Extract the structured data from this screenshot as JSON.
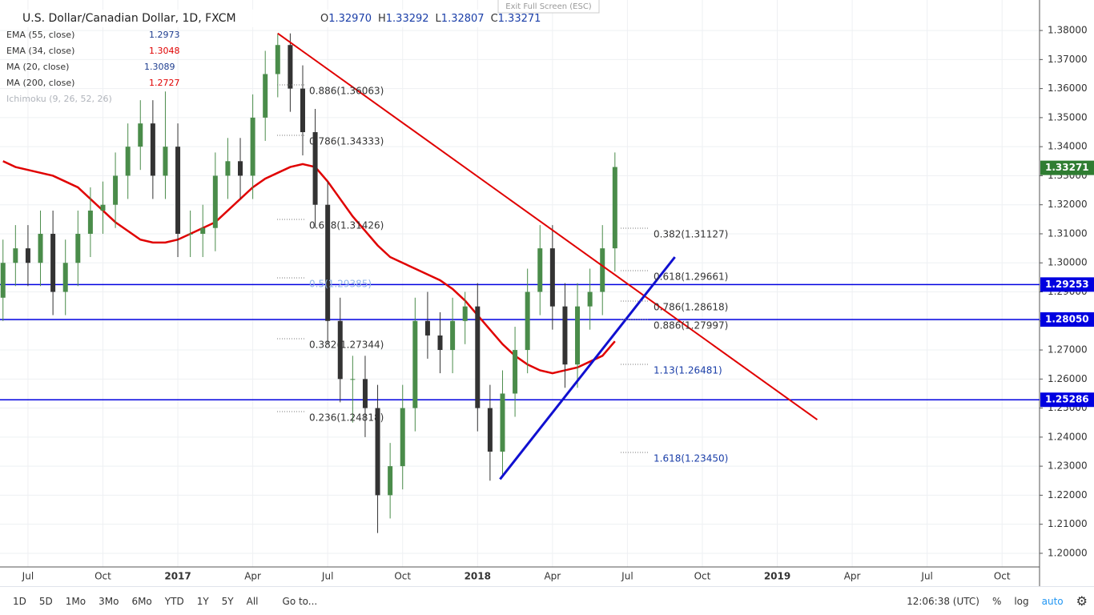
{
  "chart_data": {
    "type": "candlestick",
    "title": "U.S. Dollar/Canadian Dollar, 1D, FXCM",
    "ohlc": [
      {
        "label": "O",
        "value": "1.32970"
      },
      {
        "label": "H",
        "value": "1.33292"
      },
      {
        "label": "L",
        "value": "1.32807"
      },
      {
        "label": "C",
        "value": "1.33271"
      }
    ],
    "exit_button": "Exit Full Screen (ESC)",
    "indicators": [
      {
        "name": "EMA (55, close)",
        "value": "1.2973",
        "color": "#1e3d8f"
      },
      {
        "name": "EMA (34, close)",
        "value": "1.3048",
        "color": "#e00000"
      },
      {
        "name": "MA (20, close)",
        "value": "1.3089",
        "color": "#1e3d8f"
      },
      {
        "name": "MA (200, close)",
        "value": "1.2727",
        "color": "#e00000",
        "values": [
          1.335,
          1.333,
          1.332,
          1.331,
          1.33,
          1.328,
          1.326,
          1.322,
          1.318,
          1.314,
          1.311,
          1.308,
          1.307,
          1.307,
          1.308,
          1.31,
          1.312,
          1.314,
          1.318,
          1.322,
          1.326,
          1.329,
          1.331,
          1.333,
          1.334,
          1.333,
          1.328,
          1.322,
          1.316,
          1.311,
          1.306,
          1.302,
          1.3,
          1.298,
          1.296,
          1.294,
          1.291,
          1.287,
          1.282,
          1.277,
          1.272,
          1.268,
          1.265,
          1.263,
          1.262,
          1.263,
          1.264,
          1.266,
          1.268,
          1.273
        ]
      },
      {
        "name": "Ichimoku (9, 26, 52, 26)",
        "color": "#b0b4bb"
      }
    ],
    "x": [
      -1,
      -0.5,
      0,
      0.5,
      1,
      1.5,
      2,
      2.5,
      3,
      3.5,
      4,
      4.5,
      5,
      5.5,
      6,
      6.5,
      7,
      7.5,
      8,
      8.5,
      9,
      9.5,
      10,
      10.5,
      11,
      11.5,
      12,
      12.5,
      13,
      13.5,
      14,
      14.5,
      15,
      15.5,
      16,
      16.5,
      17,
      17.5,
      18,
      18.5,
      19,
      19.5,
      20,
      20.5,
      21,
      21.5,
      22,
      22.5,
      23,
      23.5
    ],
    "candles": {
      "open": [
        1.288,
        1.3,
        1.305,
        1.3,
        1.31,
        1.29,
        1.3,
        1.31,
        1.318,
        1.32,
        1.33,
        1.34,
        1.348,
        1.33,
        1.34,
        1.31,
        1.31,
        1.312,
        1.33,
        1.335,
        1.33,
        1.35,
        1.365,
        1.375,
        1.36,
        1.345,
        1.32,
        1.28,
        1.26,
        1.26,
        1.25,
        1.22,
        1.23,
        1.25,
        1.28,
        1.275,
        1.27,
        1.28,
        1.285,
        1.25,
        1.235,
        1.255,
        1.27,
        1.29,
        1.305,
        1.285,
        1.265,
        1.285,
        1.29,
        1.305
      ],
      "high": [
        1.308,
        1.313,
        1.313,
        1.318,
        1.318,
        1.308,
        1.318,
        1.326,
        1.328,
        1.338,
        1.348,
        1.356,
        1.356,
        1.359,
        1.348,
        1.318,
        1.32,
        1.338,
        1.343,
        1.343,
        1.358,
        1.373,
        1.379,
        1.379,
        1.368,
        1.353,
        1.328,
        1.288,
        1.268,
        1.268,
        1.258,
        1.238,
        1.258,
        1.288,
        1.29,
        1.283,
        1.288,
        1.29,
        1.293,
        1.258,
        1.263,
        1.278,
        1.298,
        1.313,
        1.313,
        1.293,
        1.293,
        1.298,
        1.313,
        1.338
      ],
      "low": [
        1.28,
        1.292,
        1.292,
        1.292,
        1.282,
        1.282,
        1.292,
        1.302,
        1.31,
        1.312,
        1.322,
        1.332,
        1.322,
        1.322,
        1.302,
        1.302,
        1.302,
        1.304,
        1.322,
        1.322,
        1.322,
        1.342,
        1.357,
        1.352,
        1.337,
        1.312,
        1.272,
        1.252,
        1.245,
        1.24,
        1.207,
        1.212,
        1.222,
        1.242,
        1.267,
        1.262,
        1.262,
        1.272,
        1.242,
        1.225,
        1.227,
        1.247,
        1.262,
        1.282,
        1.277,
        1.257,
        1.257,
        1.277,
        1.282,
        1.297
      ],
      "close": [
        1.3,
        1.305,
        1.3,
        1.31,
        1.29,
        1.3,
        1.31,
        1.318,
        1.32,
        1.33,
        1.34,
        1.348,
        1.33,
        1.34,
        1.31,
        1.31,
        1.312,
        1.33,
        1.335,
        1.33,
        1.35,
        1.365,
        1.375,
        1.36,
        1.345,
        1.32,
        1.28,
        1.26,
        1.26,
        1.25,
        1.22,
        1.23,
        1.25,
        1.28,
        1.275,
        1.27,
        1.28,
        1.285,
        1.25,
        1.235,
        1.255,
        1.27,
        1.29,
        1.305,
        1.285,
        1.265,
        1.285,
        1.29,
        1.305,
        1.333
      ],
      "up_color": "#4a8c4a",
      "down_color": "#333333"
    },
    "levels": [
      {
        "value": 1.29253,
        "label": "1.29253",
        "color": "#0000e0"
      },
      {
        "value": 1.2805,
        "label": "1.28050",
        "color": "#0000e0"
      },
      {
        "value": 1.25286,
        "label": "1.25286",
        "color": "#0000e0"
      }
    ],
    "last_price": {
      "value": 1.33271,
      "label": "1.33271",
      "color": "#2f7d32"
    },
    "trendlines": [
      {
        "color": "#e00000",
        "x": [
          10,
          31.6
        ],
        "y": [
          1.379,
          1.246
        ]
      },
      {
        "color": "#1010d0",
        "x": [
          18.9,
          25.9
        ],
        "y": [
          1.2255,
          1.302
        ]
      }
    ],
    "fib_left": [
      "0.886(1.36063)",
      "0.786(1.34333)",
      "0.618(1.31426)",
      "0.5(1.29385)",
      "0.382(1.27344)",
      "0.236(1.24818)"
    ],
    "fib_right": [
      "0.382(1.31127)",
      "0.618(1.29661)",
      "0.786(1.28618)",
      "0.886(1.27997)",
      "1.13(1.26481)",
      "1.618(1.23450)"
    ],
    "xlim": [
      -1.12,
      40.5
    ],
    "xticks": [
      {
        "value": 0,
        "label": "Jul"
      },
      {
        "value": 3,
        "label": "Oct"
      },
      {
        "value": 6,
        "label": "2017"
      },
      {
        "value": 9,
        "label": "Apr"
      },
      {
        "value": 12,
        "label": "Jul"
      },
      {
        "value": 15,
        "label": "Oct"
      },
      {
        "value": 18,
        "label": "2018"
      },
      {
        "value": 21,
        "label": "Apr"
      },
      {
        "value": 24,
        "label": "Jul"
      },
      {
        "value": 27,
        "label": "Oct"
      },
      {
        "value": 30,
        "label": "2019"
      },
      {
        "value": 33,
        "label": "Apr"
      },
      {
        "value": 36,
        "label": "Jul"
      },
      {
        "value": 39,
        "label": "Oct"
      }
    ],
    "ylim": [
      1.1953,
      1.3905
    ],
    "yticks": [
      {
        "value": 1.2,
        "label": "1.20000"
      },
      {
        "value": 1.21,
        "label": "1.21000"
      },
      {
        "value": 1.22,
        "label": "1.22000"
      },
      {
        "value": 1.23,
        "label": "1.23000"
      },
      {
        "value": 1.24,
        "label": "1.24000"
      },
      {
        "value": 1.25,
        "label": "1.25000"
      },
      {
        "value": 1.26,
        "label": "1.26000"
      },
      {
        "value": 1.27,
        "label": "1.27000"
      },
      {
        "value": 1.28,
        "label": "1.28000"
      },
      {
        "value": 1.29,
        "label": "1.29000"
      },
      {
        "value": 1.3,
        "label": "1.30000"
      },
      {
        "value": 1.31,
        "label": "1.31000"
      },
      {
        "value": 1.32,
        "label": "1.32000"
      },
      {
        "value": 1.33,
        "label": "1.33000"
      },
      {
        "value": 1.34,
        "label": "1.34000"
      },
      {
        "value": 1.35,
        "label": "1.35000"
      },
      {
        "value": 1.36,
        "label": "1.36000"
      },
      {
        "value": 1.37,
        "label": "1.37000"
      },
      {
        "value": 1.38,
        "label": "1.38000"
      }
    ],
    "grid": true,
    "toolbar": {
      "periods": [
        "1D",
        "5D",
        "1Mo",
        "3Mo",
        "6Mo",
        "YTD",
        "1Y",
        "5Y",
        "All"
      ],
      "goto": "Go to...",
      "clock": "12:06:38 (UTC)",
      "percent": "%",
      "log": "log",
      "auto": "auto"
    }
  }
}
